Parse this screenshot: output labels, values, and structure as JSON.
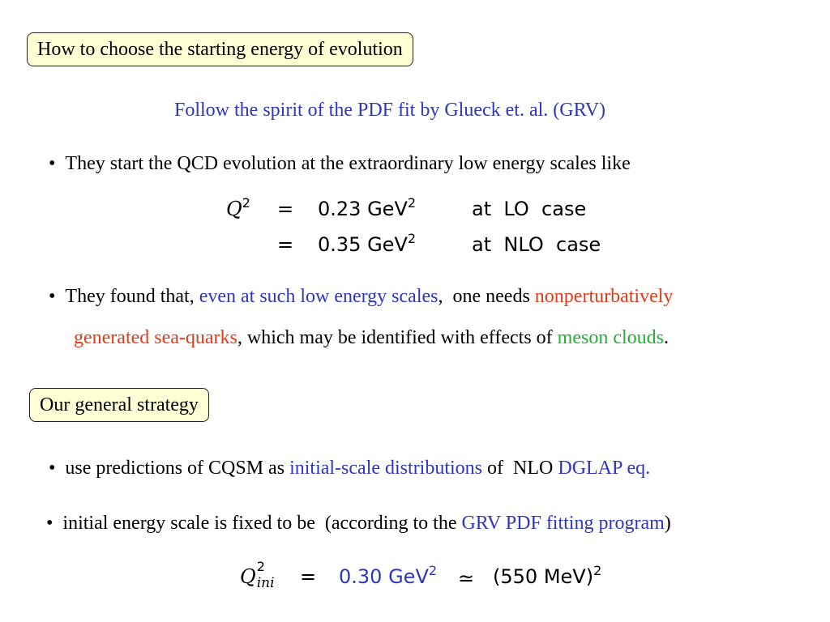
{
  "section1": {
    "title": "How to choose the starting energy of evolution"
  },
  "subtitle": "Follow the spirit of the PDF fit by Glueck et. al. (GRV)",
  "bullet1": {
    "marker": "•",
    "text": "They start the QCD evolution at the extraordinary low energy scales like"
  },
  "equation1": {
    "lhs_var": "Q",
    "lhs_exp": "2",
    "eq": "=",
    "row1": {
      "value": "0.23",
      "unit": "GeV",
      "unit_exp": "2",
      "note": "at  LO  case"
    },
    "row2": {
      "value": "0.35",
      "unit": "GeV",
      "unit_exp": "2",
      "note": "at  NLO  case"
    }
  },
  "bullet2": {
    "marker": "•",
    "part1": "They found that, ",
    "part2": "even at such low energy scales",
    "part3": ",  one needs ",
    "part4": "nonperturbatively",
    "line2_part1": "generated sea-quarks",
    "line2_part2": ", which may be identified with effects of ",
    "line2_part3": "meson clouds",
    "line2_part4": "."
  },
  "section2": {
    "title": "Our general strategy"
  },
  "bullet3": {
    "marker": "•",
    "part1": "use predictions of CQSM as ",
    "part2": "initial-scale distributions",
    "part3": " of  NLO ",
    "part4": "DGLAP eq."
  },
  "bullet4": {
    "marker": "•",
    "part1": "initial energy scale is fixed to be  (according to the ",
    "part2": "GRV PDF fitting program",
    "part3": ")"
  },
  "equation2": {
    "lhs_var": "Q",
    "lhs_exp": "2",
    "lhs_sub": "ini",
    "eq": "=",
    "value": "0.30",
    "unit": "GeV",
    "unit_exp": "2",
    "approx": "≃",
    "rhs_open": "(550",
    "rhs_unit": "MeV)",
    "rhs_exp": "2"
  },
  "colors": {
    "blue": "#2e36c2",
    "red": "#e43a1a",
    "green": "#22b030",
    "box_fill": "#ffffd6"
  }
}
